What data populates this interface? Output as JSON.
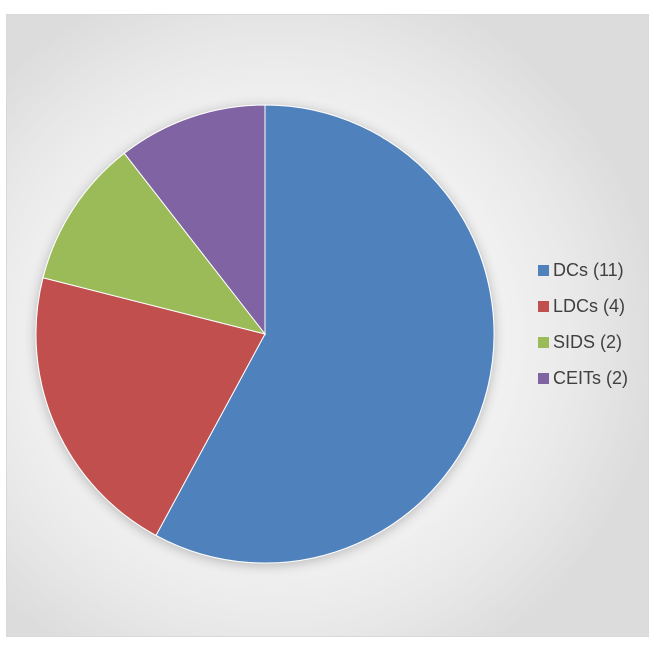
{
  "chart_data": {
    "type": "pie",
    "title": "",
    "categories": [
      "DCs (11)",
      "LDCs (4)",
      "SIDS (2)",
      "CEITs (2)"
    ],
    "values": [
      11,
      4,
      2,
      2
    ],
    "colors": [
      "#4f81bd",
      "#c0504d",
      "#9bbb59",
      "#8064a2"
    ],
    "legend_position": "right",
    "start_angle": "12 o'clock",
    "direction": "clockwise"
  }
}
